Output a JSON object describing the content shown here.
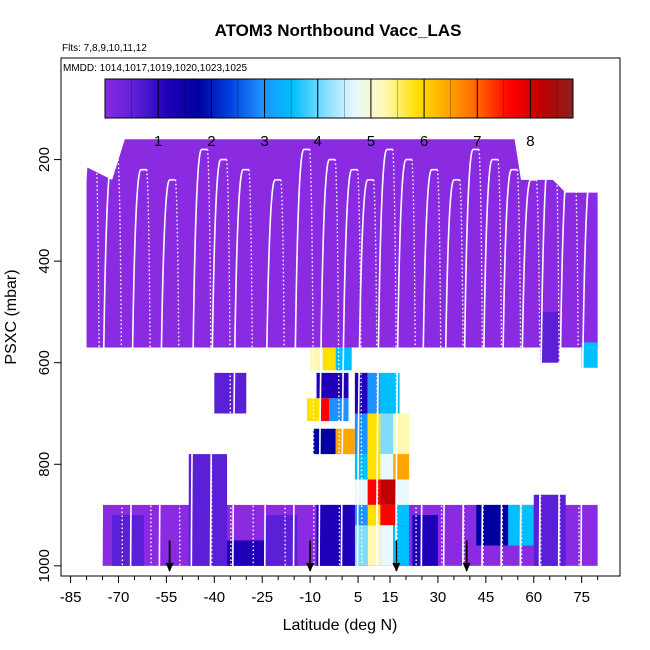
{
  "chart_data": {
    "type": "heatmap",
    "title": "ATOM3 Northbound Vacc_LAS",
    "flights_label": "Flts: 7,8,9,10,11,12",
    "dates_label": "MMDD: 1014,1017,1019,1020,1023,1025",
    "xlabel": "Latitude (deg N)",
    "ylabel": "PSXC (mbar)",
    "xlim": [
      -88,
      87
    ],
    "ylim": [
      1020,
      0
    ],
    "x_ticks": [
      -85,
      -70,
      -55,
      -40,
      -25,
      -10,
      5,
      15,
      30,
      45,
      60,
      75
    ],
    "x_tick_labels": [
      "-85",
      "-70",
      "-55",
      "-40",
      "-25",
      "-10",
      "5",
      "15",
      "30",
      "45",
      "60",
      "75"
    ],
    "y_ticks": [
      200,
      400,
      600,
      800,
      1000
    ],
    "y_tick_labels": [
      "200",
      "400",
      "600",
      "800",
      "1000"
    ],
    "colorbar": {
      "min": 0,
      "max": 8.8,
      "ticks": [
        1,
        2,
        3,
        4,
        5,
        6,
        7,
        8
      ],
      "tick_labels": [
        "1",
        "2",
        "3",
        "4",
        "5",
        "6",
        "7",
        "8"
      ],
      "colors": [
        "#8a2be2",
        "#5a1fd6",
        "#1f00b8",
        "#0000a0",
        "#0040e0",
        "#1e90ff",
        "#00bfff",
        "#7fdcff",
        "#e8f8ff",
        "#fff8b0",
        "#ffe000",
        "#ffa500",
        "#ff6000",
        "#ff0000",
        "#c00000",
        "#8b2020"
      ]
    },
    "background_value": 0.3,
    "cells": [
      {
        "lat": [
          -72,
          -62
        ],
        "p": [
          900,
          1000
        ],
        "v": 0.9
      },
      {
        "lat": [
          -48,
          -36
        ],
        "p": [
          780,
          1000
        ],
        "v": 0.8
      },
      {
        "lat": [
          -36,
          -24
        ],
        "p": [
          950,
          1000
        ],
        "v": 1.5
      },
      {
        "lat": [
          -24,
          -14
        ],
        "p": [
          900,
          1000
        ],
        "v": 1.0
      },
      {
        "lat": [
          -40,
          -30
        ],
        "p": [
          620,
          700
        ],
        "v": 0.7
      },
      {
        "lat": [
          -10,
          -6
        ],
        "p": [
          570,
          615
        ],
        "v": 5.2
      },
      {
        "lat": [
          -6,
          -2
        ],
        "p": [
          570,
          615
        ],
        "v": 6.0
      },
      {
        "lat": [
          -2,
          3
        ],
        "p": [
          570,
          615
        ],
        "v": 3.6
      },
      {
        "lat": [
          -11,
          -7
        ],
        "p": [
          670,
          715
        ],
        "v": 5.8
      },
      {
        "lat": [
          -7,
          -4
        ],
        "p": [
          670,
          715
        ],
        "v": 7.6
      },
      {
        "lat": [
          -4,
          2
        ],
        "p": [
          670,
          715
        ],
        "v": 3.0
      },
      {
        "lat": [
          -8,
          2
        ],
        "p": [
          620,
          670
        ],
        "v": 1.3
      },
      {
        "lat": [
          -9,
          -2
        ],
        "p": [
          730,
          780
        ],
        "v": 2.0
      },
      {
        "lat": [
          -2,
          4
        ],
        "p": [
          730,
          780
        ],
        "v": 6.2
      },
      {
        "lat": [
          4,
          8
        ],
        "p": [
          620,
          700
        ],
        "v": 1.5
      },
      {
        "lat": [
          8,
          12
        ],
        "p": [
          620,
          700
        ],
        "v": 3.2
      },
      {
        "lat": [
          12,
          18
        ],
        "p": [
          620,
          700
        ],
        "v": 3.5
      },
      {
        "lat": [
          4,
          8
        ],
        "p": [
          700,
          780
        ],
        "v": 3.0
      },
      {
        "lat": [
          8,
          12
        ],
        "p": [
          700,
          780
        ],
        "v": 5.6
      },
      {
        "lat": [
          12,
          16
        ],
        "p": [
          700,
          780
        ],
        "v": 4.2
      },
      {
        "lat": [
          16,
          21
        ],
        "p": [
          700,
          780
        ],
        "v": 5.2
      },
      {
        "lat": [
          4,
          8
        ],
        "p": [
          780,
          830
        ],
        "v": 3.8
      },
      {
        "lat": [
          8,
          12
        ],
        "p": [
          780,
          830
        ],
        "v": 6.0
      },
      {
        "lat": [
          12,
          16
        ],
        "p": [
          780,
          830
        ],
        "v": 4.6
      },
      {
        "lat": [
          16,
          21
        ],
        "p": [
          780,
          830
        ],
        "v": 6.2
      },
      {
        "lat": [
          4,
          8
        ],
        "p": [
          830,
          880
        ],
        "v": 4.4
      },
      {
        "lat": [
          8,
          12
        ],
        "p": [
          830,
          880
        ],
        "v": 7.6
      },
      {
        "lat": [
          12,
          17
        ],
        "p": [
          830,
          880
        ],
        "v": 7.8
      },
      {
        "lat": [
          17,
          21
        ],
        "p": [
          830,
          880
        ],
        "v": 4.8
      },
      {
        "lat": [
          4,
          8
        ],
        "p": [
          880,
          920
        ],
        "v": 3.0
      },
      {
        "lat": [
          8,
          12
        ],
        "p": [
          880,
          920
        ],
        "v": 5.6
      },
      {
        "lat": [
          12,
          17
        ],
        "p": [
          880,
          920
        ],
        "v": 7.2
      },
      {
        "lat": [
          17,
          21
        ],
        "p": [
          880,
          920
        ],
        "v": 3.5
      },
      {
        "lat": [
          4,
          8
        ],
        "p": [
          920,
          1000
        ],
        "v": 4.2
      },
      {
        "lat": [
          8,
          12
        ],
        "p": [
          920,
          1000
        ],
        "v": 5.0
      },
      {
        "lat": [
          12,
          16
        ],
        "p": [
          920,
          1000
        ],
        "v": 4.4
      },
      {
        "lat": [
          16,
          21
        ],
        "p": [
          920,
          1000
        ],
        "v": 3.6
      },
      {
        "lat": [
          -8,
          4
        ],
        "p": [
          880,
          1000
        ],
        "v": 1.2
      },
      {
        "lat": [
          22,
          30
        ],
        "p": [
          900,
          1000
        ],
        "v": 1.1
      },
      {
        "lat": [
          42,
          52
        ],
        "p": [
          880,
          960
        ],
        "v": 1.8
      },
      {
        "lat": [
          52,
          60
        ],
        "p": [
          880,
          960
        ],
        "v": 3.6
      },
      {
        "lat": [
          62,
          68
        ],
        "p": [
          500,
          600
        ],
        "v": 1.0
      },
      {
        "lat": [
          75,
          80
        ],
        "p": [
          560,
          610
        ],
        "v": 3.4
      },
      {
        "lat": [
          60,
          70
        ],
        "p": [
          860,
          1000
        ],
        "v": 1.0
      }
    ],
    "profile_peaks_lat": [
      -79,
      -72,
      -63,
      -54,
      -44,
      -38,
      -31,
      -21,
      -12,
      -4,
      3,
      8,
      14,
      20,
      28,
      35,
      41,
      47,
      53,
      59,
      65,
      71,
      78
    ],
    "arrow_markers_lat": [
      -54,
      -10,
      17,
      39
    ]
  }
}
